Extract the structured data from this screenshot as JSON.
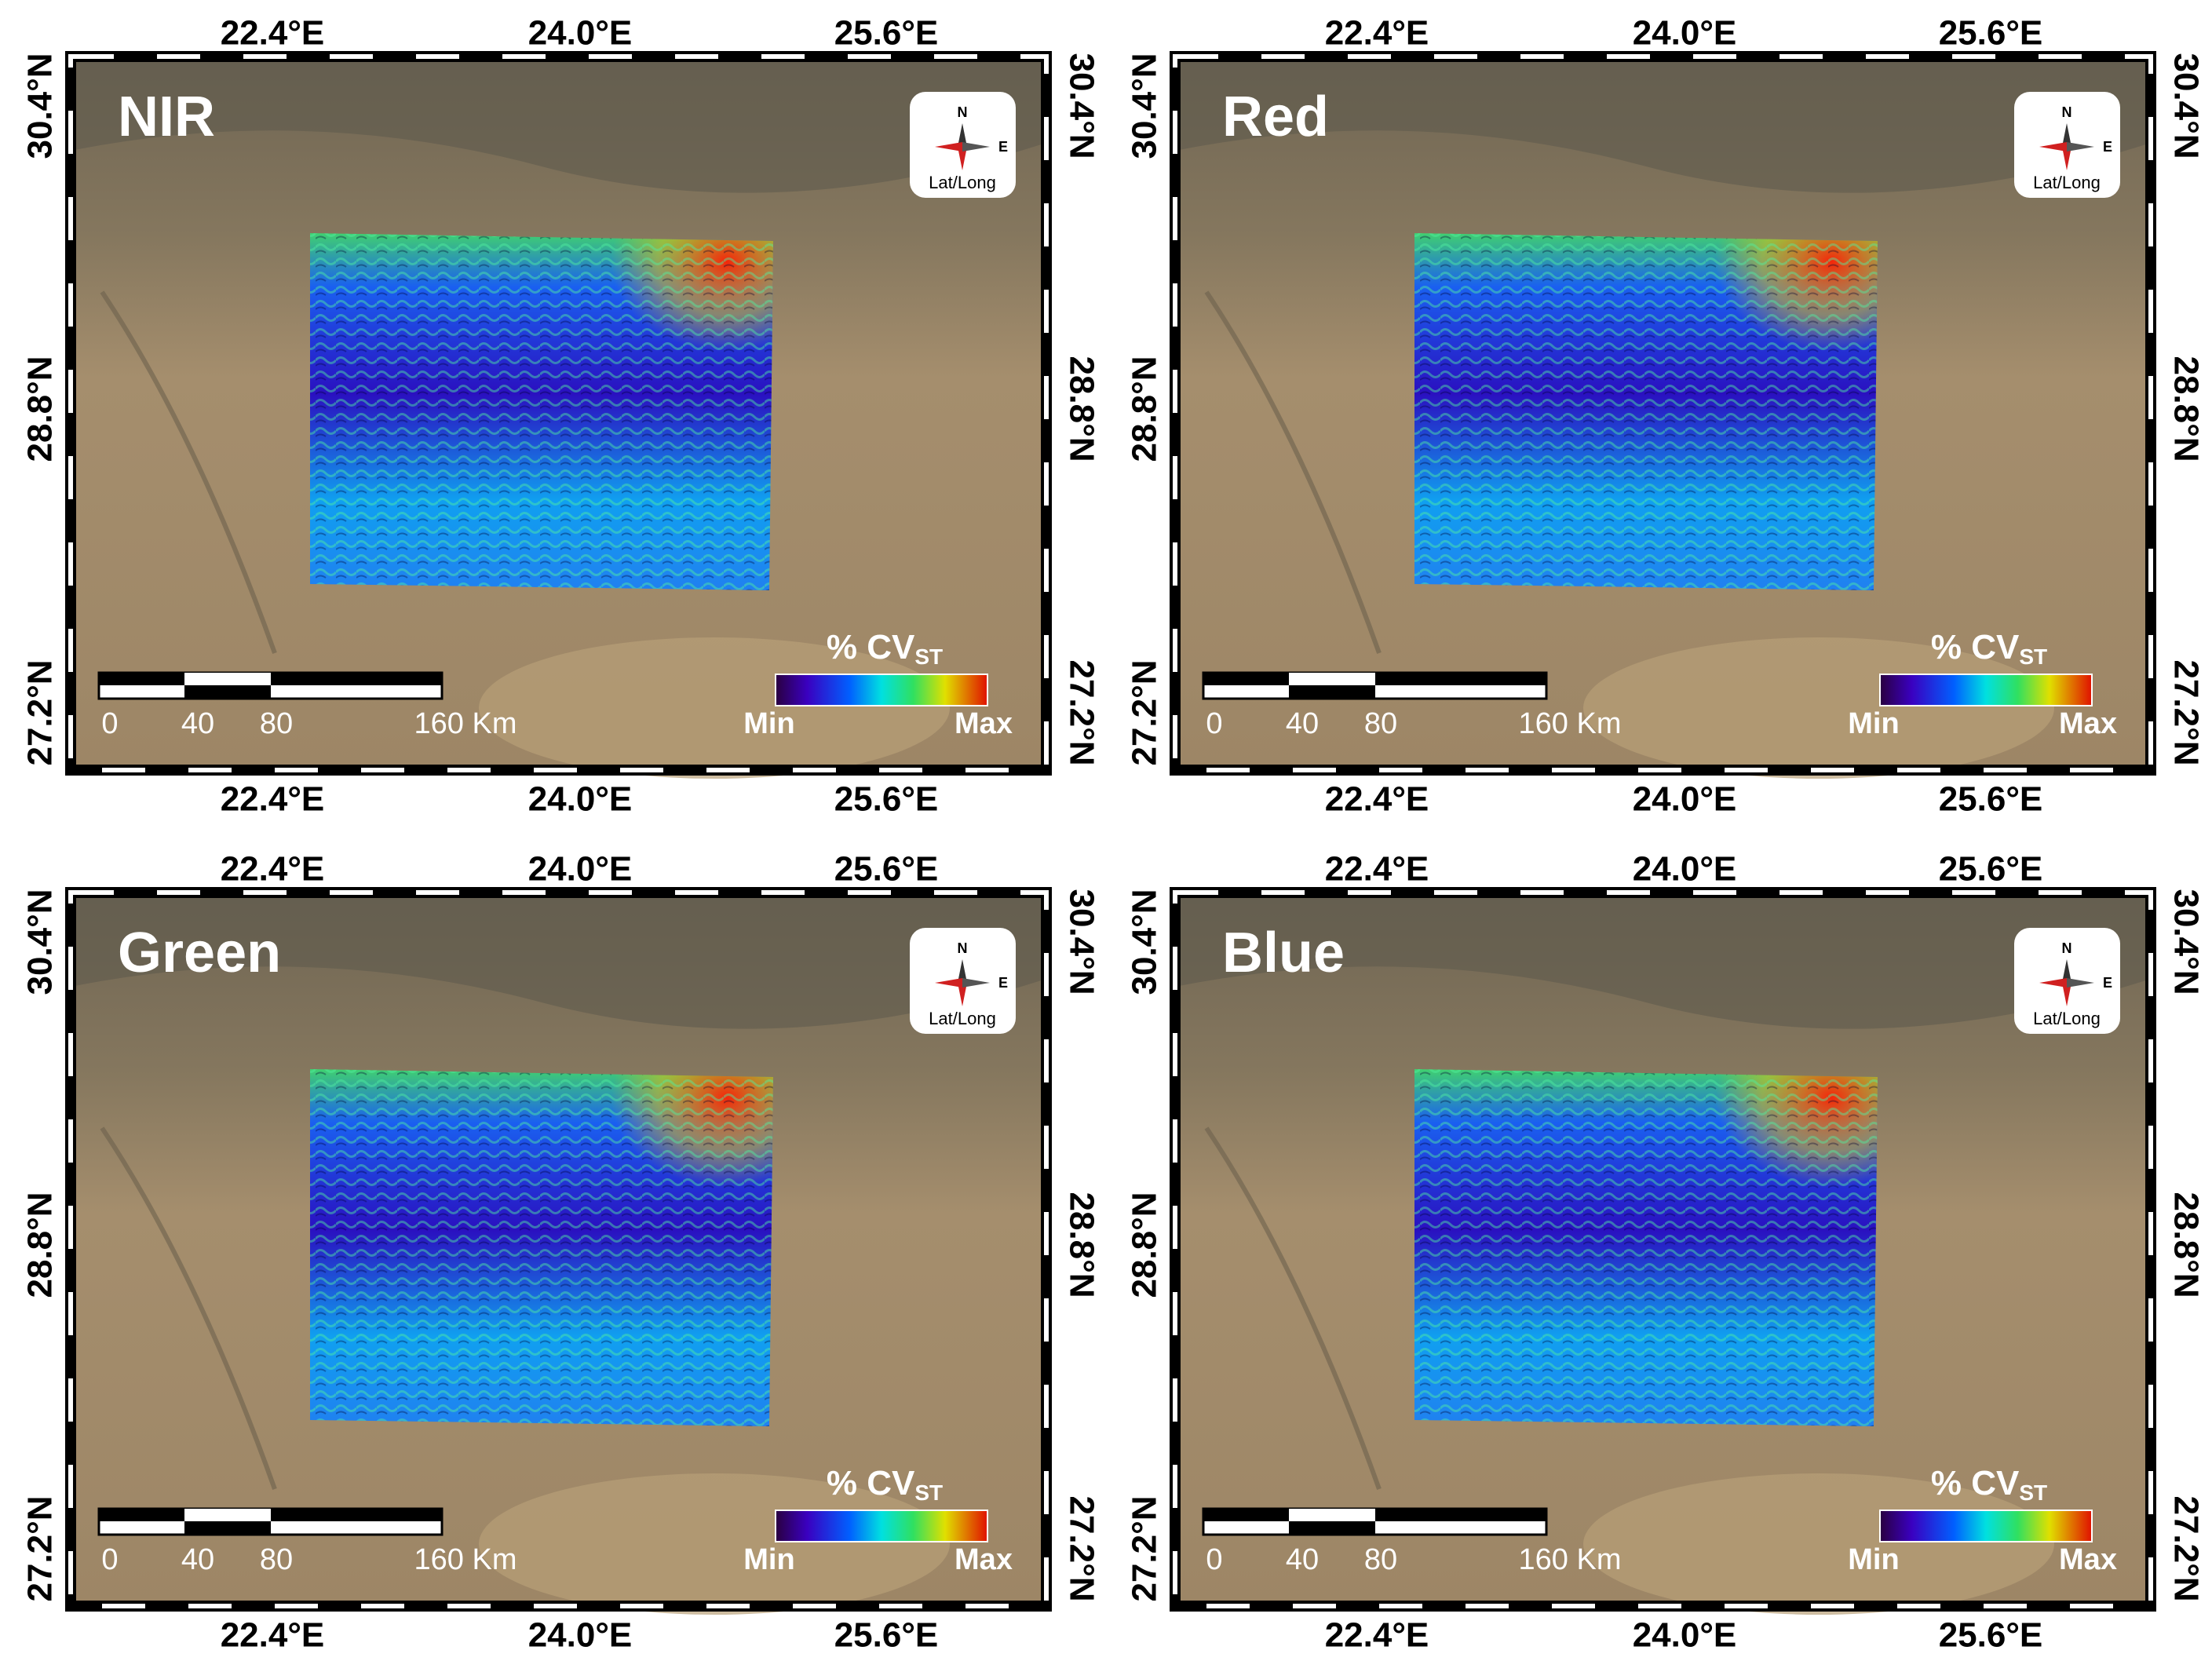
{
  "panels": [
    {
      "title": "NIR"
    },
    {
      "title": "Red"
    },
    {
      "title": "Green"
    },
    {
      "title": "Blue"
    }
  ],
  "longitude_labels": [
    "22.4°E",
    "24.0°E",
    "25.6°E"
  ],
  "latitude_labels": [
    "30.4°N",
    "28.8°N",
    "27.2°N"
  ],
  "compass": {
    "north": "N",
    "east": "E",
    "caption": "Lat/Long"
  },
  "scale_bar": {
    "labels": [
      "0",
      "40",
      "80",
      "160 Km"
    ]
  },
  "colorbar": {
    "label": "% CV",
    "subscript": "ST",
    "min_label": "Min",
    "max_label": "Max"
  }
}
